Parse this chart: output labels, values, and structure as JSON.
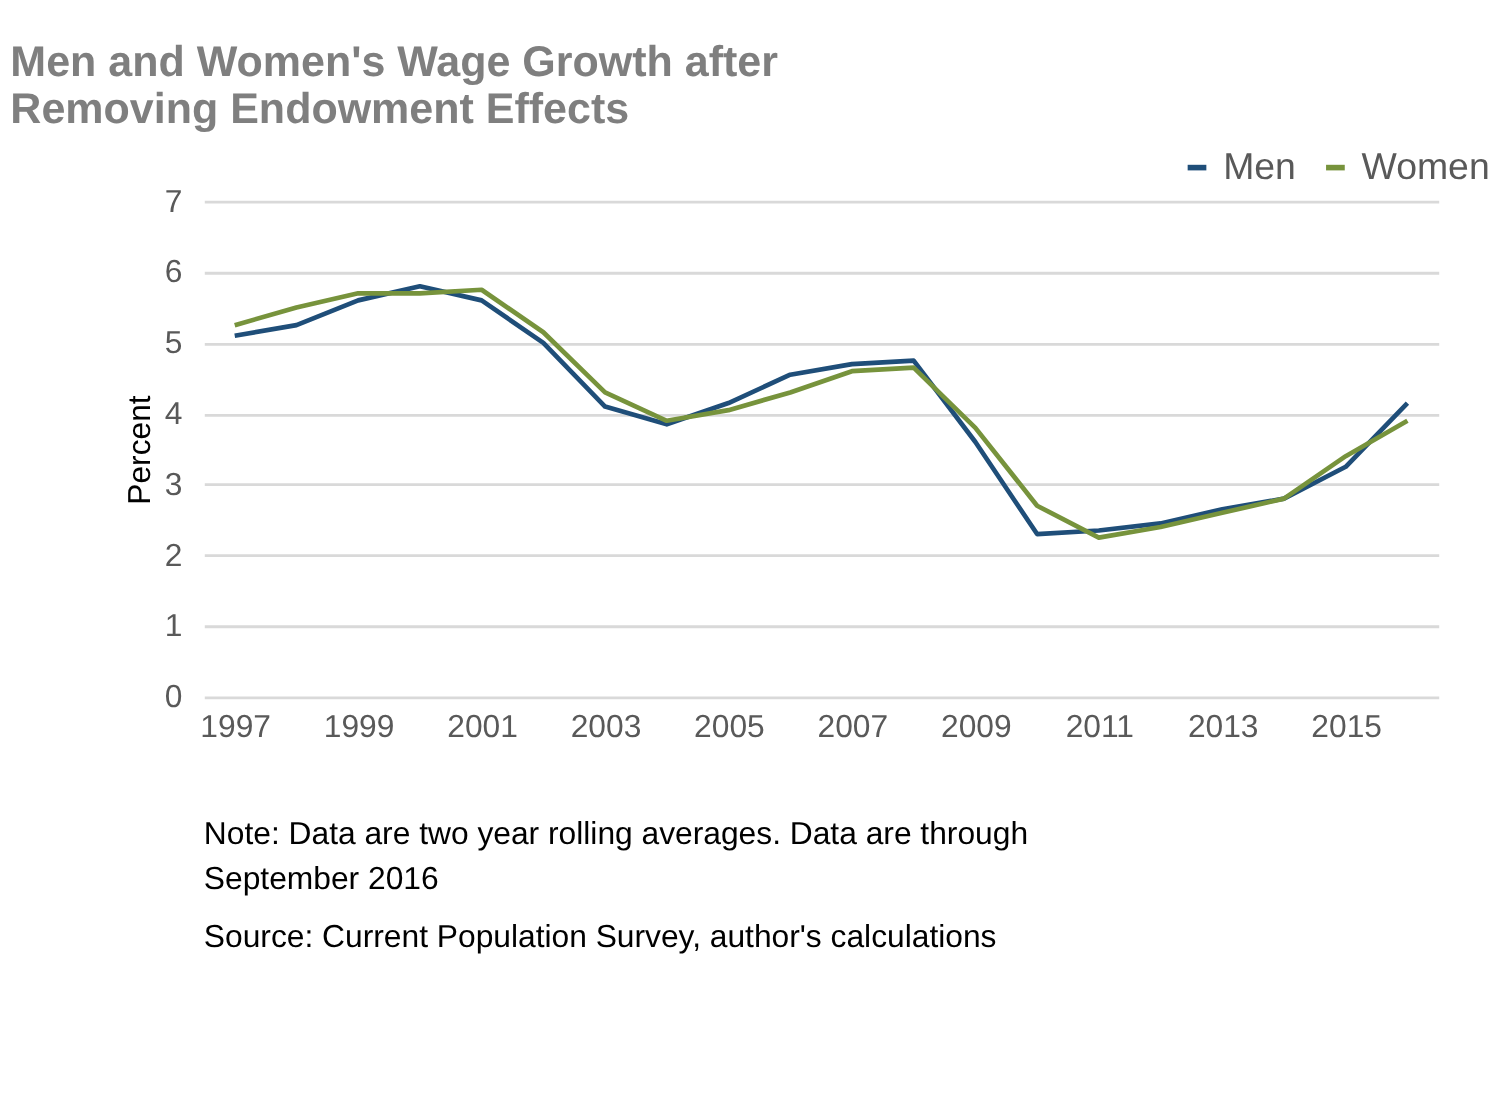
{
  "chart_data": {
    "type": "line",
    "title": [
      "Men and Women's Wage Growth after",
      "Removing Endowment Effects"
    ],
    "ylabel": "Percent",
    "x": [
      1997,
      1998,
      1999,
      2000,
      2001,
      2002,
      2003,
      2004,
      2005,
      2006,
      2007,
      2008,
      2009,
      2010,
      2011,
      2012,
      2013,
      2014,
      2015,
      2016
    ],
    "series": [
      {
        "name": "Men",
        "color": "#1f4e79",
        "values": [
          5.1,
          5.25,
          5.6,
          5.8,
          5.6,
          5.0,
          4.1,
          3.85,
          4.15,
          4.55,
          4.7,
          4.75,
          3.6,
          2.3,
          2.35,
          2.45,
          2.65,
          2.8,
          3.25,
          4.15
        ]
      },
      {
        "name": "Women",
        "color": "#77933c",
        "values": [
          5.25,
          5.5,
          5.7,
          5.7,
          5.75,
          5.15,
          4.3,
          3.9,
          4.05,
          4.3,
          4.6,
          4.65,
          3.8,
          2.7,
          2.25,
          2.4,
          2.6,
          2.8,
          3.4,
          3.9
        ]
      }
    ],
    "xlim": [
      1996.5,
      2016.5
    ],
    "xticks": [
      1997,
      1999,
      2001,
      2003,
      2005,
      2007,
      2009,
      2011,
      2013,
      2015
    ],
    "ylim": [
      0,
      7
    ],
    "yticks": [
      0,
      1,
      2,
      3,
      4,
      5,
      6,
      7
    ],
    "grid": "y",
    "legend": "top right",
    "line_style": "solid",
    "annotations": [
      "Note: Data are two year rolling averages. Data are through September 2016",
      "Source: Current Population Survey, author's calculations"
    ]
  }
}
